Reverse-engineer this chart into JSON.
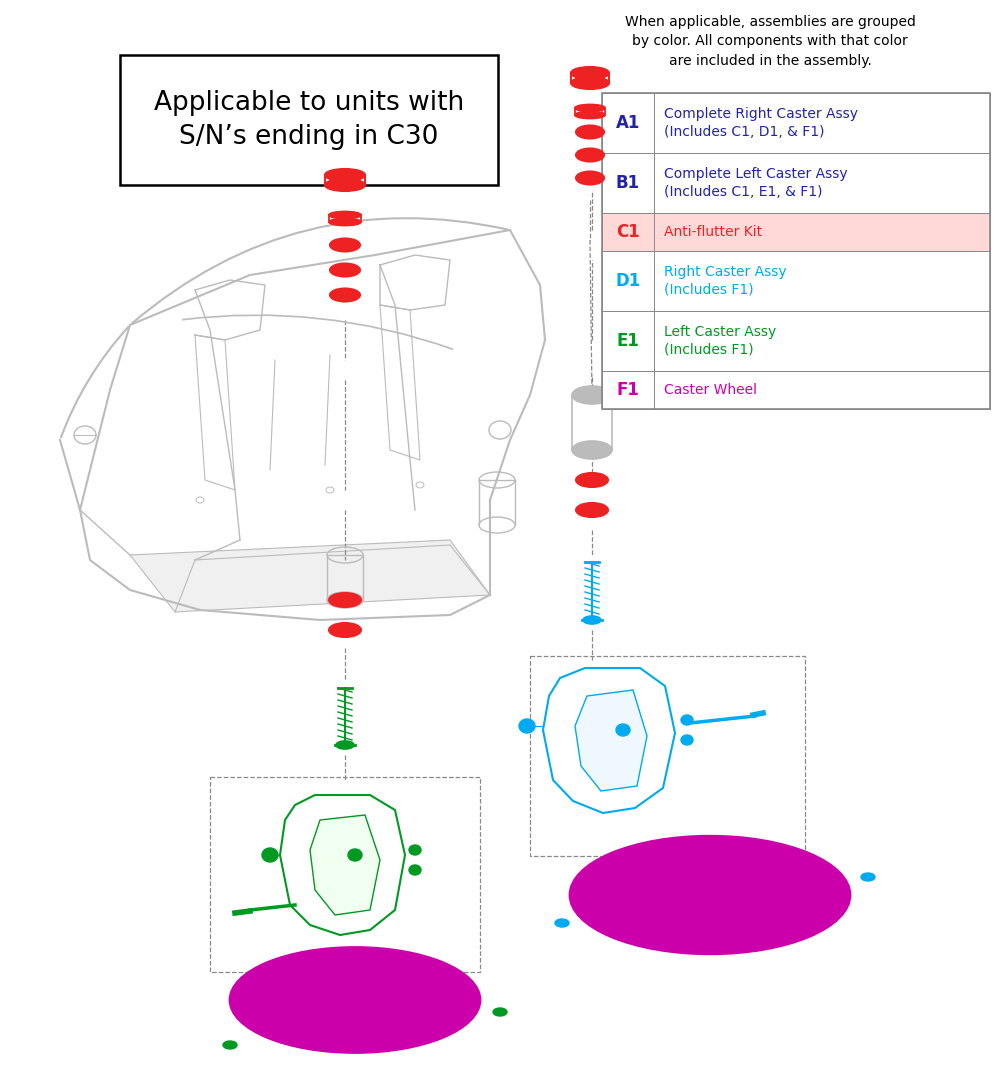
{
  "title_box_text": "Applicable to units with\nS/N’s ending in C30",
  "header_text": "When applicable, assemblies are grouped\nby color. All components with that color\nare included in the assembly.",
  "legend_rows": [
    {
      "id": "A1",
      "id_color": "#2222aa",
      "text": "Complete Right Caster Assy\n(Includes C1, D1, & F1)",
      "text_color": "#2222aa"
    },
    {
      "id": "B1",
      "id_color": "#2222aa",
      "text": "Complete Left Caster Assy\n(Includes C1, E1, & F1)",
      "text_color": "#2222aa"
    },
    {
      "id": "C1",
      "id_color": "#ee2222",
      "text": "Anti-flutter Kit",
      "text_color": "#ee2222",
      "bg": "#ffd8d8"
    },
    {
      "id": "D1",
      "id_color": "#00aaee",
      "text": "Right Caster Assy\n(Includes F1)",
      "text_color": "#00aaee"
    },
    {
      "id": "E1",
      "id_color": "#009922",
      "text": "Left Caster Assy\n(Includes F1)",
      "text_color": "#009922"
    },
    {
      "id": "F1",
      "id_color": "#cc00aa",
      "text": "Caster Wheel",
      "text_color": "#cc00aa"
    }
  ],
  "bg_color": "#ffffff",
  "red": "#ee2222",
  "green": "#009922",
  "blue": "#00aaee",
  "magenta": "#cc00aa",
  "dark_blue": "#2222aa",
  "lgray": "#bbbbbb",
  "dgray": "#888888",
  "frame_gray": "#aaaaaa"
}
